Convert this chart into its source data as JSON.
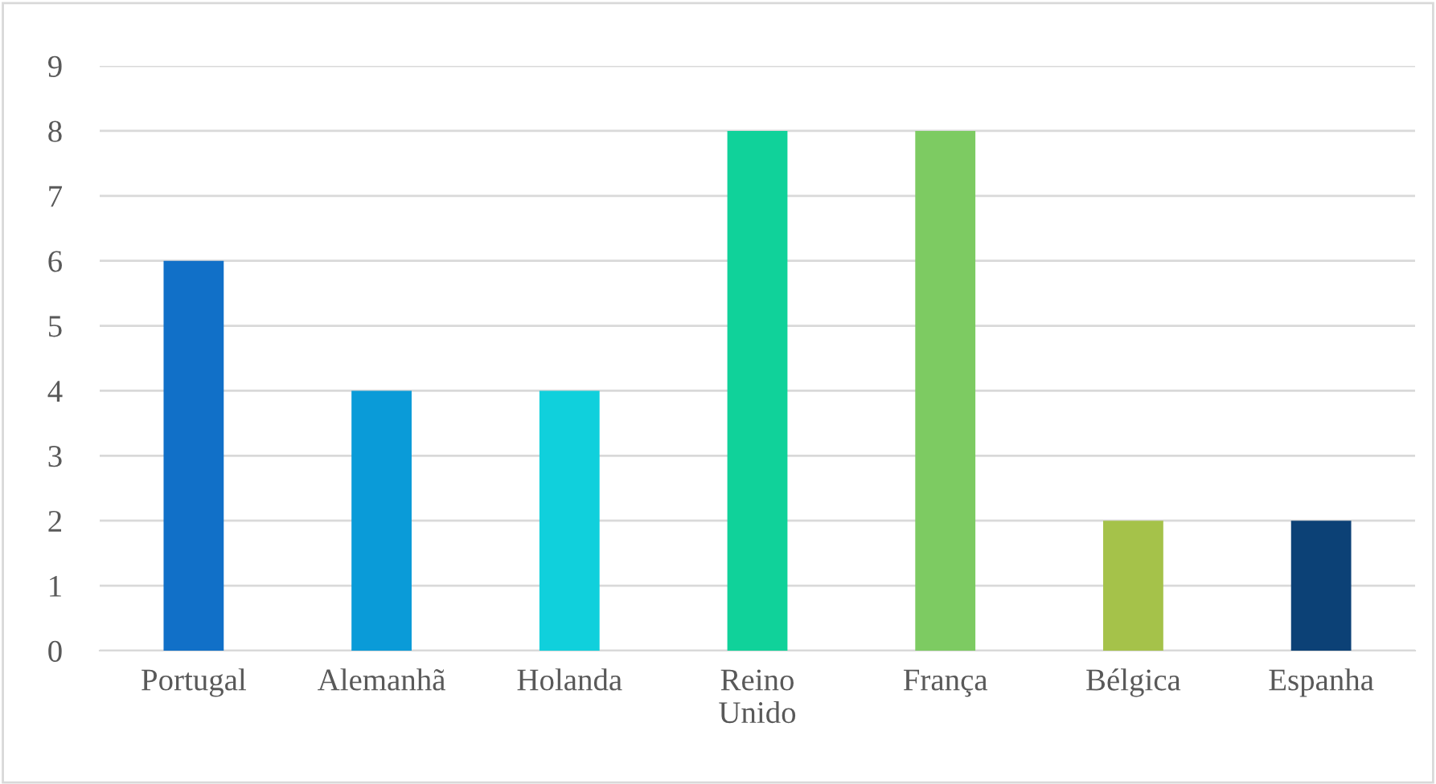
{
  "chart_data": {
    "type": "bar",
    "categories": [
      "Portugal",
      "Alemanhã",
      "Holanda",
      "Reino Unido",
      "França",
      "Bélgica",
      "Espanha"
    ],
    "values": [
      6,
      4,
      4,
      8,
      8,
      2,
      2
    ],
    "colors": [
      "#1170c8",
      "#0a9bd8",
      "#10d0dc",
      "#10d29a",
      "#7dcb62",
      "#a5c24a",
      "#0c4176"
    ],
    "ylim": [
      0,
      9
    ],
    "yticks": [
      0,
      1,
      2,
      3,
      4,
      5,
      6,
      7,
      8,
      9
    ],
    "grid": "y"
  }
}
